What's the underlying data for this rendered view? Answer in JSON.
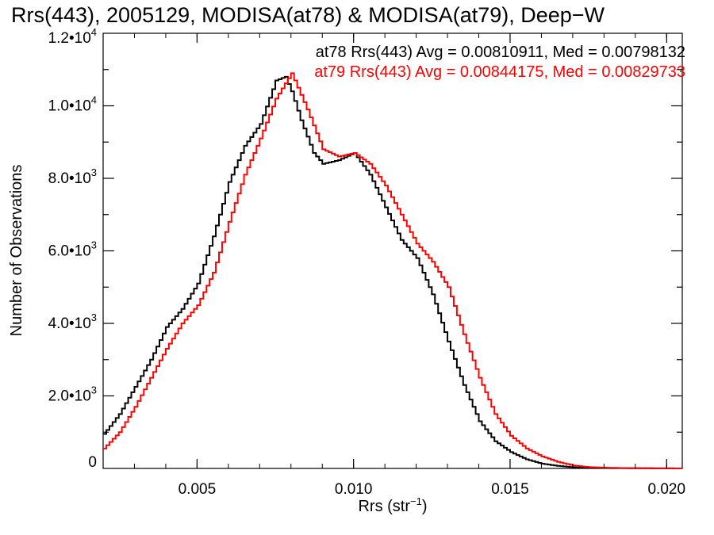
{
  "chart_data": {
    "type": "line",
    "title": "Rrs(443), 2005129, MODISA(at78) & MODISA(at79), Deep−W",
    "xlabel_main": "Rrs (str",
    "xlabel_sup": "−1",
    "xlabel_end": ")",
    "ylabel": "Number of Observations",
    "xlim": [
      0.002,
      0.0205
    ],
    "ylim": [
      0,
      12000
    ],
    "x_ticks": [
      {
        "value": 0.005,
        "label": "0.005"
      },
      {
        "value": 0.01,
        "label": "0.010"
      },
      {
        "value": 0.015,
        "label": "0.015"
      },
      {
        "value": 0.02,
        "label": "0.020"
      }
    ],
    "y_ticks": [
      {
        "value": 0,
        "mant": "0",
        "exp": ""
      },
      {
        "value": 2000,
        "mant": "2.0•10",
        "exp": "3"
      },
      {
        "value": 4000,
        "mant": "4.0•10",
        "exp": "3"
      },
      {
        "value": 6000,
        "mant": "6.0•10",
        "exp": "3"
      },
      {
        "value": 8000,
        "mant": "8.0•10",
        "exp": "3"
      },
      {
        "value": 10000,
        "mant": "1.0•10",
        "exp": "4"
      },
      {
        "value": 12000,
        "mant": "1.2•10",
        "exp": "4"
      }
    ],
    "legend": [
      {
        "text": "at78 Rrs(443) Avg = 0.00810911, Med = 0.00798132",
        "color": "#000000"
      },
      {
        "text": "at79 Rrs(443) Avg = 0.00844175, Med = 0.00829733",
        "color": "#ff0000"
      }
    ],
    "series": [
      {
        "color": "#000000",
        "points": [
          [
            0.002,
            950
          ],
          [
            0.0025,
            1500
          ],
          [
            0.003,
            2250
          ],
          [
            0.0035,
            3000
          ],
          [
            0.004,
            3900
          ],
          [
            0.0045,
            4400
          ],
          [
            0.005,
            5100
          ],
          [
            0.0055,
            6400
          ],
          [
            0.006,
            7900
          ],
          [
            0.0065,
            8900
          ],
          [
            0.007,
            9500
          ],
          [
            0.0075,
            10700
          ],
          [
            0.0078,
            10800
          ],
          [
            0.008,
            10400
          ],
          [
            0.0083,
            9600
          ],
          [
            0.0087,
            8700
          ],
          [
            0.009,
            8400
          ],
          [
            0.0095,
            8500
          ],
          [
            0.01,
            8700
          ],
          [
            0.0105,
            8100
          ],
          [
            0.011,
            7200
          ],
          [
            0.0115,
            6300
          ],
          [
            0.012,
            5800
          ],
          [
            0.0125,
            4800
          ],
          [
            0.013,
            3500
          ],
          [
            0.0135,
            2300
          ],
          [
            0.014,
            1300
          ],
          [
            0.0145,
            750
          ],
          [
            0.015,
            450
          ],
          [
            0.0155,
            250
          ],
          [
            0.016,
            130
          ],
          [
            0.0165,
            70
          ],
          [
            0.017,
            30
          ],
          [
            0.018,
            10
          ],
          [
            0.0205,
            0
          ]
        ]
      },
      {
        "color": "#ff0000",
        "points": [
          [
            0.002,
            550
          ],
          [
            0.0025,
            1000
          ],
          [
            0.003,
            1700
          ],
          [
            0.0035,
            2500
          ],
          [
            0.004,
            3300
          ],
          [
            0.0045,
            4000
          ],
          [
            0.005,
            4500
          ],
          [
            0.0055,
            5400
          ],
          [
            0.006,
            6800
          ],
          [
            0.0065,
            8100
          ],
          [
            0.007,
            9100
          ],
          [
            0.0075,
            10200
          ],
          [
            0.008,
            10900
          ],
          [
            0.0085,
            9900
          ],
          [
            0.009,
            8800
          ],
          [
            0.0095,
            8600
          ],
          [
            0.01,
            8700
          ],
          [
            0.0105,
            8400
          ],
          [
            0.011,
            7800
          ],
          [
            0.0115,
            7000
          ],
          [
            0.012,
            6200
          ],
          [
            0.0125,
            5700
          ],
          [
            0.013,
            5000
          ],
          [
            0.0135,
            3700
          ],
          [
            0.014,
            2500
          ],
          [
            0.0145,
            1500
          ],
          [
            0.015,
            900
          ],
          [
            0.0155,
            550
          ],
          [
            0.016,
            330
          ],
          [
            0.0165,
            180
          ],
          [
            0.017,
            80
          ],
          [
            0.0175,
            35
          ],
          [
            0.0185,
            10
          ],
          [
            0.0205,
            0
          ]
        ]
      }
    ]
  }
}
